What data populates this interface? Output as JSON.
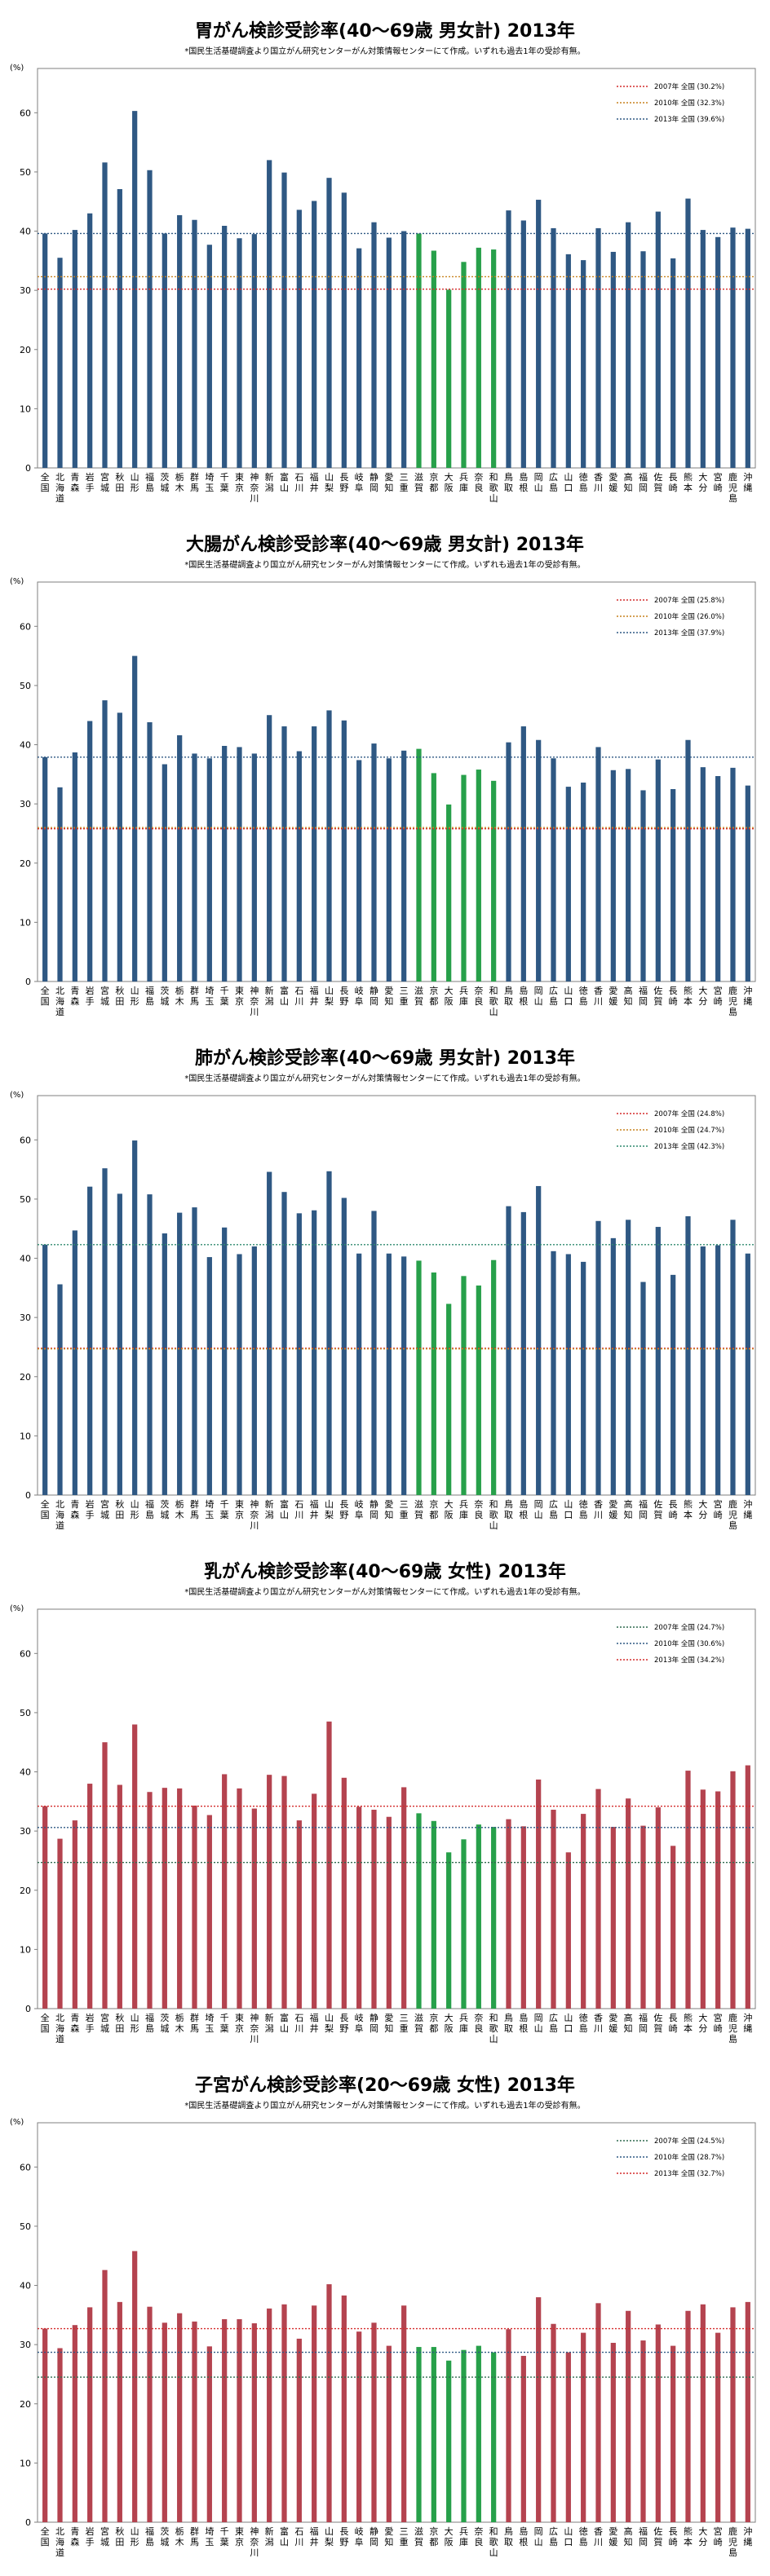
{
  "prefectures": [
    "全国",
    "北海道",
    "青森",
    "岩手",
    "宮城",
    "秋田",
    "山形",
    "福島",
    "茨城",
    "栃木",
    "群馬",
    "埼玉",
    "千葉",
    "東京",
    "神奈川",
    "新潟",
    "富山",
    "石川",
    "福井",
    "山梨",
    "長野",
    "岐阜",
    "静岡",
    "愛知",
    "三重",
    "滋賀",
    "京都",
    "大阪",
    "兵庫",
    "奈良",
    "和歌山",
    "鳥取",
    "島根",
    "岡山",
    "広島",
    "山口",
    "徳島",
    "香川",
    "愛媛",
    "高知",
    "福岡",
    "佐賀",
    "長崎",
    "熊本",
    "大分",
    "宮崎",
    "鹿児島",
    "沖縄"
  ],
  "colors": {
    "blue": "#2f5883",
    "red": "#b4434f",
    "green": "#27a04a"
  },
  "chart_data": [
    {
      "type": "bar",
      "title": "胃がん検診受診率(40～69歳 男女計) 2013年",
      "subtitle": "*国民生活基礎調査より国立がん研究センターがん対策情報センターにて作成。いずれも過去1年の受診有無。",
      "ylabel": "(%)",
      "ylim": [
        0,
        65
      ],
      "yticks": [
        0,
        10,
        20,
        30,
        40,
        50,
        60
      ],
      "bar_color": "blue",
      "legend_position": "top-right",
      "reference_lines": [
        {
          "label": "2007年 全国 (30.2%)",
          "value": 30.2,
          "color": "#d42b2b"
        },
        {
          "label": "2010年 全国 (32.3%)",
          "value": 32.3,
          "color": "#c7821f"
        },
        {
          "label": "2013年 全国 (39.6%)",
          "value": 39.6,
          "color": "#2f5883"
        }
      ],
      "values": [
        39.6,
        35.5,
        40.2,
        43.0,
        51.6,
        47.1,
        60.3,
        50.3,
        39.6,
        42.7,
        41.9,
        37.7,
        40.9,
        38.8,
        39.5,
        52.0,
        49.9,
        43.6,
        45.1,
        49.0,
        46.5,
        37.1,
        41.5,
        38.9,
        40.0,
        39.6,
        36.7,
        30.1,
        34.8,
        37.2,
        36.9,
        43.5,
        41.8,
        45.3,
        40.5,
        36.1,
        35.1,
        40.5,
        36.5,
        41.5,
        36.6,
        43.3,
        35.4,
        45.5,
        40.2,
        39.0,
        40.6,
        40.4
      ]
    },
    {
      "type": "bar",
      "title": "大腸がん検診受診率(40～69歳 男女計) 2013年",
      "subtitle": "*国民生活基礎調査より国立がん研究センターがん対策情報センターにて作成。いずれも過去1年の受診有無。",
      "ylabel": "(%)",
      "ylim": [
        0,
        65
      ],
      "yticks": [
        0,
        10,
        20,
        30,
        40,
        50,
        60
      ],
      "bar_color": "blue",
      "legend_position": "top-right",
      "reference_lines": [
        {
          "label": "2007年 全国 (25.8%)",
          "value": 25.8,
          "color": "#d42b2b"
        },
        {
          "label": "2010年 全国 (26.0%)",
          "value": 26.0,
          "color": "#c7821f"
        },
        {
          "label": "2013年 全国 (37.9%)",
          "value": 37.9,
          "color": "#2f5883"
        }
      ],
      "values": [
        37.9,
        32.8,
        38.7,
        44.0,
        47.5,
        45.4,
        55.0,
        43.8,
        36.7,
        41.6,
        38.5,
        37.7,
        39.8,
        39.6,
        38.5,
        45.0,
        43.1,
        38.9,
        43.1,
        45.8,
        44.1,
        37.4,
        40.2,
        37.7,
        39.0,
        39.3,
        35.2,
        29.9,
        34.9,
        35.8,
        33.9,
        40.4,
        43.1,
        40.8,
        37.7,
        32.9,
        33.6,
        39.6,
        35.7,
        35.9,
        32.3,
        37.5,
        32.5,
        40.8,
        36.2,
        34.7,
        36.1,
        33.1
      ]
    },
    {
      "type": "bar",
      "title": "肺がん検診受診率(40～69歳 男女計) 2013年",
      "subtitle": "*国民生活基礎調査より国立がん研究センターがん対策情報センターにて作成。いずれも過去1年の受診有無。",
      "ylabel": "(%)",
      "ylim": [
        0,
        65
      ],
      "yticks": [
        0,
        10,
        20,
        30,
        40,
        50,
        60
      ],
      "bar_color": "blue",
      "legend_position": "top-right",
      "reference_lines": [
        {
          "label": "2007年 全国 (24.8%)",
          "value": 24.8,
          "color": "#d42b2b"
        },
        {
          "label": "2010年 全国 (24.7%)",
          "value": 24.7,
          "color": "#c7821f"
        },
        {
          "label": "2013年 全国 (42.3%)",
          "value": 42.3,
          "color": "#2e8a6e"
        }
      ],
      "values": [
        42.3,
        35.6,
        44.7,
        52.1,
        55.2,
        50.9,
        59.9,
        50.8,
        44.2,
        47.7,
        48.6,
        40.2,
        45.2,
        40.7,
        42.0,
        54.6,
        51.2,
        47.6,
        48.1,
        54.7,
        50.2,
        40.8,
        48.0,
        40.8,
        40.3,
        39.6,
        37.6,
        32.3,
        37.0,
        35.4,
        39.7,
        48.8,
        47.8,
        52.2,
        41.2,
        40.7,
        39.4,
        46.3,
        43.4,
        46.5,
        36.0,
        45.3,
        37.2,
        47.1,
        42.0,
        42.2,
        46.5,
        40.8
      ]
    },
    {
      "type": "bar",
      "title": "乳がん検診受診率(40～69歳 女性) 2013年",
      "subtitle": "*国民生活基礎調査より国立がん研究センターがん対策情報センターにて作成。いずれも過去1年の受診有無。",
      "ylabel": "(%)",
      "ylim": [
        0,
        65
      ],
      "yticks": [
        0,
        10,
        20,
        30,
        40,
        50,
        60
      ],
      "bar_color": "red",
      "legend_position": "top-right",
      "reference_lines": [
        {
          "label": "2007年 全国 (24.7%)",
          "value": 24.7,
          "color": "#2f6a4e"
        },
        {
          "label": "2010年 全国 (30.6%)",
          "value": 30.6,
          "color": "#2f5883"
        },
        {
          "label": "2013年 全国 (34.2%)",
          "value": 34.2,
          "color": "#d42b2b"
        }
      ],
      "values": [
        34.2,
        28.7,
        31.8,
        38.0,
        45.0,
        37.8,
        48.0,
        36.6,
        37.3,
        37.2,
        34.3,
        32.7,
        39.6,
        37.2,
        33.8,
        39.5,
        39.3,
        31.8,
        36.3,
        48.5,
        39.0,
        34.1,
        33.6,
        32.4,
        37.4,
        33.0,
        31.7,
        26.4,
        28.6,
        31.1,
        30.7,
        32.0,
        30.8,
        38.7,
        33.6,
        26.4,
        32.9,
        37.1,
        30.7,
        35.5,
        30.9,
        34.0,
        27.5,
        40.2,
        37.0,
        36.7,
        40.1,
        41.1
      ]
    },
    {
      "type": "bar",
      "title": "子宮がん検診受診率(20～69歳 女性) 2013年",
      "subtitle": "*国民生活基礎調査より国立がん研究センターがん対策情報センターにて作成。いずれも過去1年の受診有無。",
      "ylabel": "(%)",
      "ylim": [
        0,
        65
      ],
      "yticks": [
        0,
        10,
        20,
        30,
        40,
        50,
        60
      ],
      "bar_color": "red",
      "legend_position": "top-right",
      "reference_lines": [
        {
          "label": "2007年 全国 (24.5%)",
          "value": 24.5,
          "color": "#2f6a4e"
        },
        {
          "label": "2010年 全国 (28.7%)",
          "value": 28.7,
          "color": "#2f5883"
        },
        {
          "label": "2013年 全国 (32.7%)",
          "value": 32.7,
          "color": "#d42b2b"
        }
      ],
      "values": [
        32.7,
        29.4,
        33.3,
        36.3,
        42.6,
        37.2,
        45.8,
        36.4,
        33.7,
        35.3,
        33.9,
        29.7,
        34.3,
        34.3,
        33.6,
        36.1,
        36.8,
        31.0,
        36.6,
        40.2,
        38.3,
        32.2,
        33.7,
        29.8,
        36.6,
        29.6,
        29.6,
        27.3,
        29.1,
        29.8,
        28.7,
        32.6,
        28.1,
        38.0,
        33.5,
        28.7,
        32.0,
        37.0,
        30.3,
        35.7,
        30.7,
        33.4,
        29.8,
        35.7,
        36.8,
        32.0,
        36.3,
        37.2
      ]
    }
  ]
}
